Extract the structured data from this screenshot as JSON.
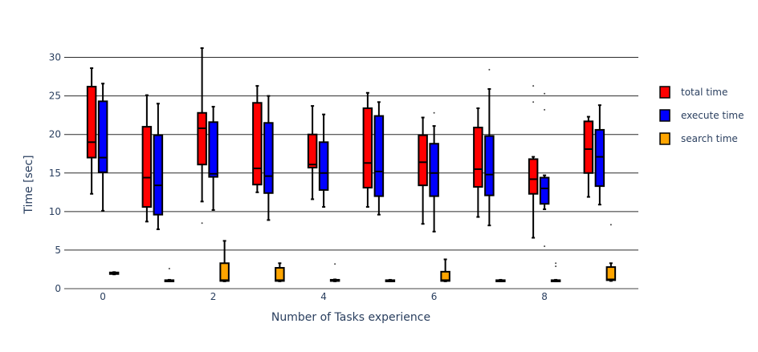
{
  "chart_data": {
    "type": "box",
    "xlabel": "Number of Tasks experience",
    "ylabel": "Time [sec]",
    "xlim": [
      -0.7,
      9.7
    ],
    "ylim": [
      0,
      31.2
    ],
    "x_ticks": [
      0,
      2,
      4,
      6,
      8
    ],
    "y_ticks": [
      0,
      5,
      10,
      15,
      20,
      25,
      30
    ],
    "grid": true,
    "legend_position": "right",
    "series": [
      {
        "name": "total time",
        "color": "#ff0000",
        "boxes": [
          {
            "x": 0,
            "q1": 17.0,
            "median": 19.0,
            "q3": 26.2,
            "lower": 12.3,
            "upper": 28.6,
            "outliers": []
          },
          {
            "x": 1,
            "q1": 10.6,
            "median": 14.4,
            "q3": 21.0,
            "lower": 8.7,
            "upper": 25.1,
            "outliers": []
          },
          {
            "x": 2,
            "q1": 16.1,
            "median": 20.8,
            "q3": 22.8,
            "lower": 11.3,
            "upper": 31.2,
            "outliers": [
              8.5
            ]
          },
          {
            "x": 3,
            "q1": 13.5,
            "median": 15.6,
            "q3": 24.1,
            "lower": 12.5,
            "upper": 26.3,
            "outliers": []
          },
          {
            "x": 4,
            "q1": 15.7,
            "median": 16.1,
            "q3": 20.0,
            "lower": 11.6,
            "upper": 23.7,
            "outliers": []
          },
          {
            "x": 5,
            "q1": 13.1,
            "median": 16.3,
            "q3": 23.4,
            "lower": 10.6,
            "upper": 25.4,
            "outliers": []
          },
          {
            "x": 6,
            "q1": 13.4,
            "median": 16.4,
            "q3": 19.9,
            "lower": 8.4,
            "upper": 22.2,
            "outliers": []
          },
          {
            "x": 7,
            "q1": 13.2,
            "median": 15.5,
            "q3": 20.9,
            "lower": 9.3,
            "upper": 23.4,
            "outliers": []
          },
          {
            "x": 8,
            "q1": 12.3,
            "median": 14.2,
            "q3": 16.8,
            "lower": 6.6,
            "upper": 17.1,
            "outliers": [
              26.3,
              24.2
            ]
          },
          {
            "x": 9,
            "q1": 15.0,
            "median": 18.1,
            "q3": 21.7,
            "lower": 11.9,
            "upper": 22.3,
            "outliers": []
          }
        ]
      },
      {
        "name": "execute time",
        "color": "#0000ff",
        "boxes": [
          {
            "x": 0,
            "q1": 15.1,
            "median": 17.0,
            "q3": 24.3,
            "lower": 10.1,
            "upper": 26.6,
            "outliers": []
          },
          {
            "x": 1,
            "q1": 9.6,
            "median": 13.4,
            "q3": 19.9,
            "lower": 7.7,
            "upper": 24.0,
            "outliers": []
          },
          {
            "x": 2,
            "q1": 14.5,
            "median": 14.9,
            "q3": 21.6,
            "lower": 10.2,
            "upper": 23.6,
            "outliers": []
          },
          {
            "x": 3,
            "q1": 12.4,
            "median": 14.6,
            "q3": 21.5,
            "lower": 8.9,
            "upper": 25.0,
            "outliers": []
          },
          {
            "x": 4,
            "q1": 12.8,
            "median": 15.0,
            "q3": 19.0,
            "lower": 10.6,
            "upper": 22.6,
            "outliers": []
          },
          {
            "x": 5,
            "q1": 12.0,
            "median": 15.2,
            "q3": 22.4,
            "lower": 9.6,
            "upper": 24.2,
            "outliers": []
          },
          {
            "x": 6,
            "q1": 12.0,
            "median": 15.0,
            "q3": 18.8,
            "lower": 7.4,
            "upper": 21.1,
            "outliers": [
              22.8
            ]
          },
          {
            "x": 7,
            "q1": 12.1,
            "median": 14.8,
            "q3": 19.8,
            "lower": 8.2,
            "upper": 25.9,
            "outliers": [
              28.4
            ]
          },
          {
            "x": 8,
            "q1": 11.0,
            "median": 13.0,
            "q3": 14.4,
            "lower": 10.3,
            "upper": 14.7,
            "outliers": [
              25.3,
              23.2,
              5.5
            ]
          },
          {
            "x": 9,
            "q1": 13.3,
            "median": 17.1,
            "q3": 20.6,
            "lower": 10.9,
            "upper": 23.8,
            "outliers": []
          }
        ]
      },
      {
        "name": "search time",
        "color": "#ffa500",
        "boxes": [
          {
            "x": 0,
            "q1": 1.9,
            "median": 2.0,
            "q3": 2.1,
            "lower": 1.85,
            "upper": 2.15,
            "outliers": []
          },
          {
            "x": 1,
            "q1": 1.0,
            "median": 1.05,
            "q3": 1.1,
            "lower": 0.95,
            "upper": 1.15,
            "outliers": [
              2.6
            ]
          },
          {
            "x": 2,
            "q1": 1.0,
            "median": 1.1,
            "q3": 3.3,
            "lower": 0.95,
            "upper": 6.2,
            "outliers": []
          },
          {
            "x": 3,
            "q1": 1.0,
            "median": 1.1,
            "q3": 2.7,
            "lower": 0.95,
            "upper": 3.3,
            "outliers": []
          },
          {
            "x": 4,
            "q1": 1.0,
            "median": 1.05,
            "q3": 1.15,
            "lower": 0.95,
            "upper": 1.2,
            "outliers": [
              3.2
            ]
          },
          {
            "x": 5,
            "q1": 1.0,
            "median": 1.05,
            "q3": 1.1,
            "lower": 0.95,
            "upper": 1.15,
            "outliers": []
          },
          {
            "x": 6,
            "q1": 1.0,
            "median": 1.1,
            "q3": 2.2,
            "lower": 0.95,
            "upper": 3.8,
            "outliers": []
          },
          {
            "x": 7,
            "q1": 1.0,
            "median": 1.05,
            "q3": 1.1,
            "lower": 0.95,
            "upper": 1.15,
            "outliers": []
          },
          {
            "x": 8,
            "q1": 1.0,
            "median": 1.05,
            "q3": 1.1,
            "lower": 0.95,
            "upper": 1.15,
            "outliers": [
              3.3,
              2.9
            ]
          },
          {
            "x": 9,
            "q1": 1.1,
            "median": 1.2,
            "q3": 2.8,
            "lower": 1.0,
            "upper": 3.3,
            "outliers": [
              8.3
            ]
          }
        ]
      }
    ]
  }
}
